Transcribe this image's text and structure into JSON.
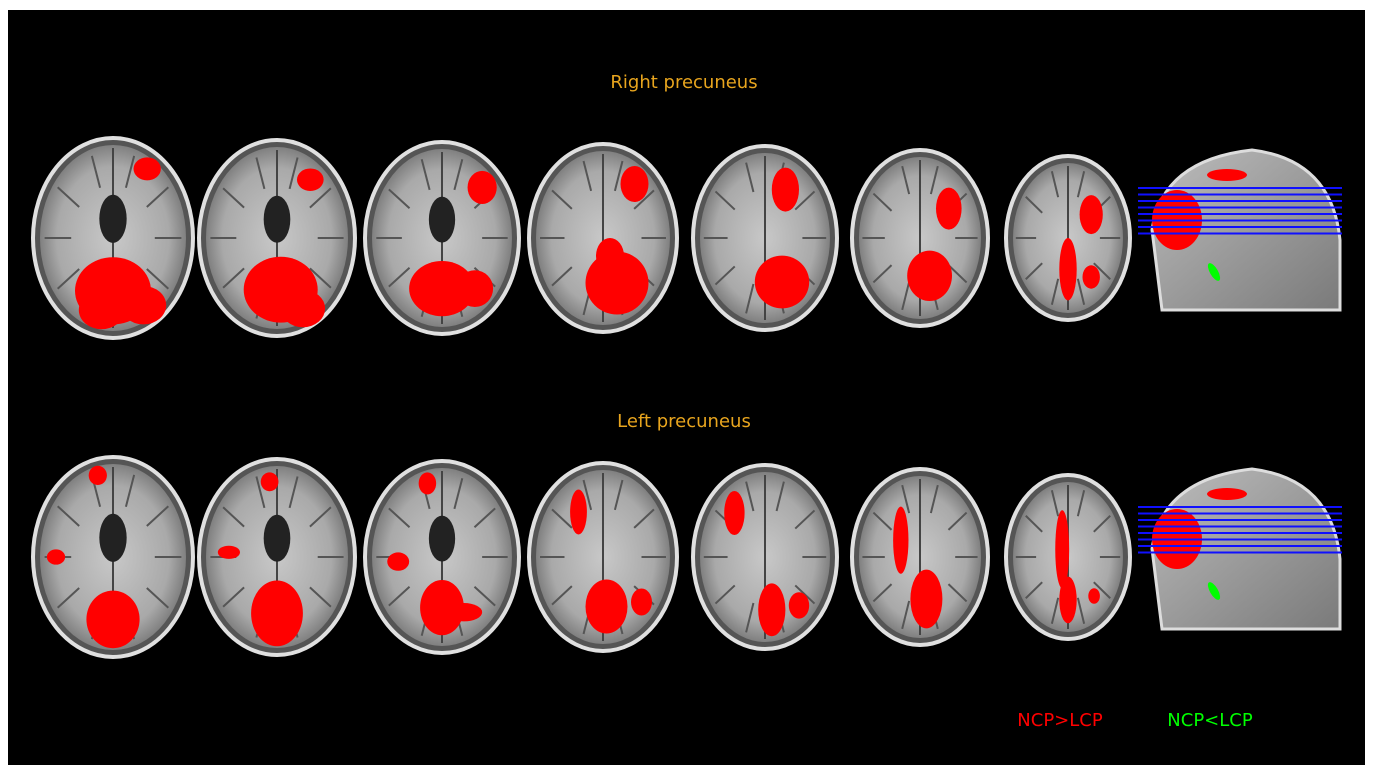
{
  "panels": [
    {
      "title": "Right precuneus"
    },
    {
      "title": "Left precuneus"
    }
  ],
  "legend": [
    {
      "label": "NCP>LCP",
      "color": "#ff0000"
    },
    {
      "label": "NCP<LCP",
      "color": "#00ff00"
    }
  ]
}
